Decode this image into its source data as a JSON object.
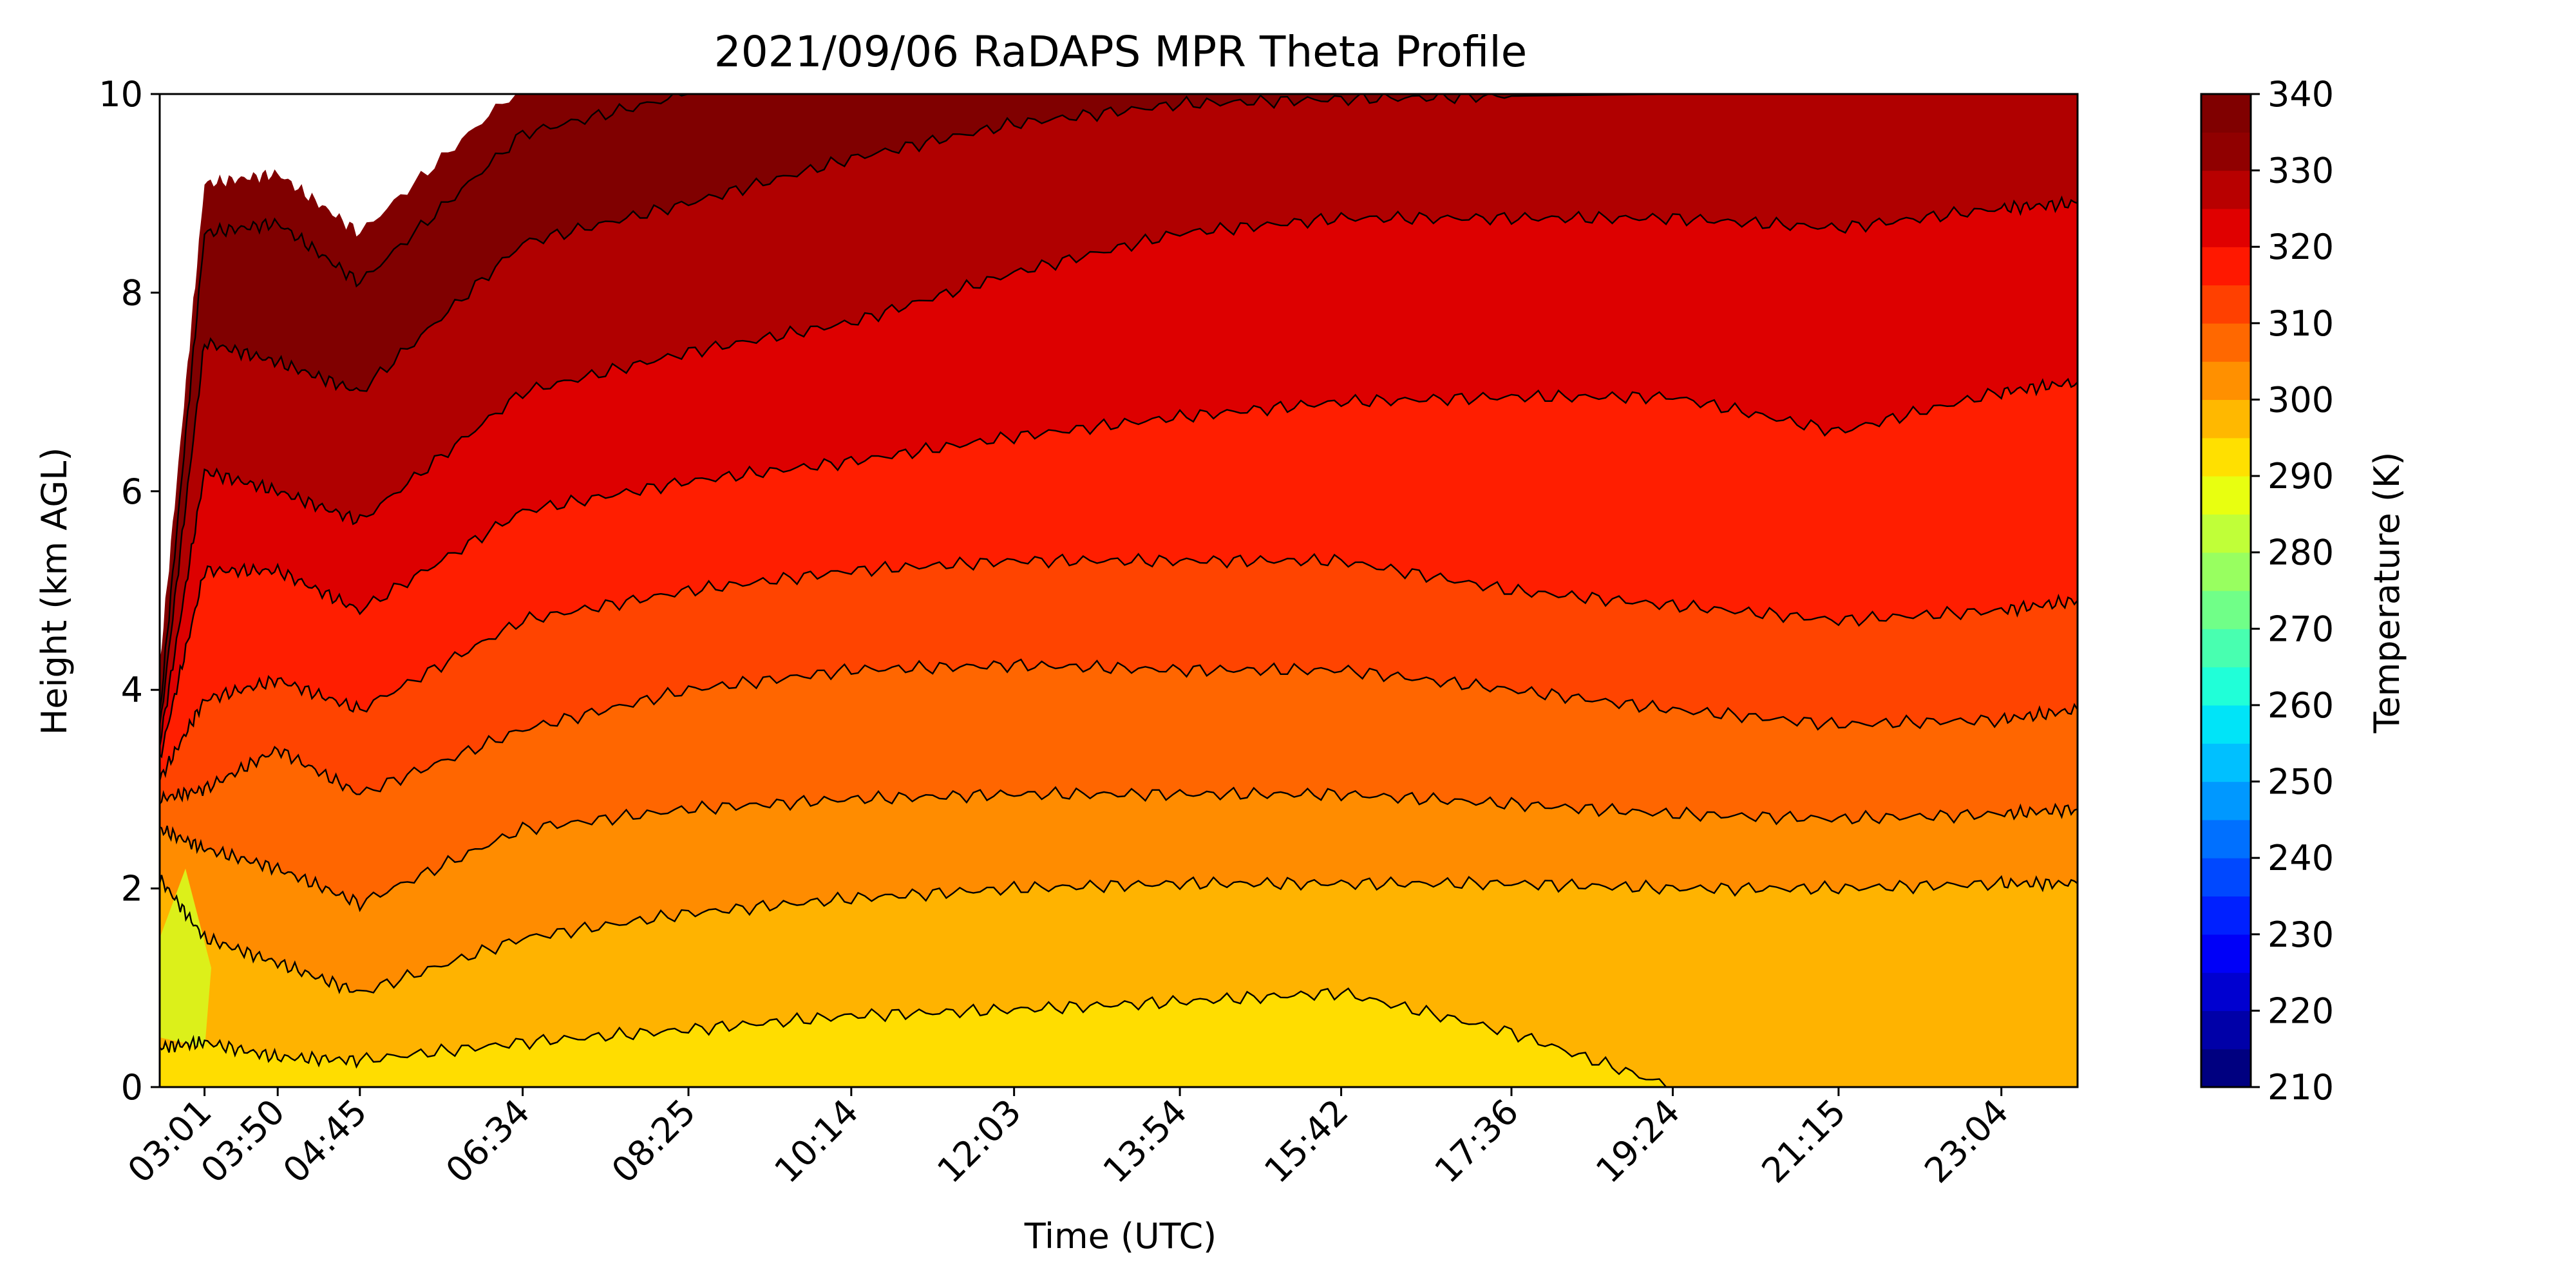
{
  "chart_data": {
    "type": "contour",
    "title": "2021/09/06 RaDAPS MPR Theta Profile",
    "xlabel": "Time (UTC)",
    "ylabel": "Height (km AGL)",
    "x_ticks": [
      "03:01",
      "03:50",
      "04:45",
      "06:34",
      "08:25",
      "10:14",
      "12:03",
      "13:54",
      "15:42",
      "17:36",
      "19:24",
      "21:15",
      "23:04"
    ],
    "y_ticks": [
      0,
      2,
      4,
      6,
      8,
      10
    ],
    "ylim": [
      0,
      10
    ],
    "xlim": [
      "02:31",
      "23:55"
    ],
    "colorbar": {
      "label": "Temperature (K)",
      "range": [
        210,
        340
      ],
      "step": 5,
      "ticks": [
        210,
        220,
        230,
        240,
        250,
        260,
        270,
        280,
        290,
        300,
        310,
        320,
        330,
        340
      ],
      "colormap": "jet"
    },
    "contour_levels": [
      295,
      300,
      305,
      310,
      315,
      320,
      325,
      330,
      335
    ],
    "contour_level_heights_km": {
      "times": [
        "02:31",
        "03:01",
        "03:50",
        "04:45",
        "06:34",
        "08:25",
        "10:14",
        "12:03",
        "13:54",
        "15:42",
        "17:36",
        "19:24",
        "21:15",
        "23:04",
        "23:55"
      ],
      "295": [
        0.4,
        0.45,
        0.3,
        0.27,
        0.45,
        0.58,
        0.72,
        0.78,
        0.86,
        0.95,
        0.55,
        0.0,
        0.0,
        0.0,
        0.0
      ],
      "300": [
        2.1,
        1.5,
        1.25,
        0.95,
        1.5,
        1.75,
        1.9,
        2.0,
        2.05,
        2.05,
        2.05,
        2.0,
        2.0,
        2.05,
        2.05
      ],
      "305": [
        2.6,
        2.4,
        2.2,
        1.85,
        2.6,
        2.8,
        2.9,
        2.95,
        2.95,
        2.95,
        2.85,
        2.75,
        2.7,
        2.75,
        2.8
      ],
      "310": [
        2.9,
        3.0,
        3.4,
        2.95,
        3.6,
        4.0,
        4.2,
        4.25,
        4.2,
        4.2,
        4.0,
        3.8,
        3.65,
        3.7,
        3.8
      ],
      "315": [
        3.1,
        3.9,
        4.1,
        3.8,
        4.7,
        5.0,
        5.2,
        5.3,
        5.3,
        5.3,
        5.0,
        4.85,
        4.7,
        4.8,
        4.9
      ],
      "320": [
        3.3,
        5.2,
        5.2,
        4.8,
        5.8,
        6.1,
        6.3,
        6.55,
        6.75,
        6.9,
        6.95,
        6.95,
        6.6,
        7.0,
        7.1
      ],
      "325": [
        3.45,
        6.2,
        6.0,
        5.7,
        7.0,
        7.4,
        7.7,
        8.2,
        8.6,
        8.75,
        8.75,
        8.75,
        8.65,
        8.85,
        8.9
      ],
      "330": [
        3.6,
        7.5,
        7.3,
        7.0,
        8.5,
        8.9,
        9.35,
        9.7,
        9.9,
        9.95,
        9.98,
        10.0,
        10.0,
        10.0,
        10.0
      ],
      "335": [
        3.75,
        8.6,
        8.7,
        8.1,
        9.6,
        10.0,
        10.0,
        10.0,
        10.0,
        10.0,
        10.0,
        10.0,
        10.0,
        10.0,
        10.0
      ]
    },
    "surface_theta_K": [
      295,
      290,
      295,
      296,
      296,
      296,
      297,
      297,
      297,
      297,
      297,
      299,
      299,
      299,
      299
    ],
    "colors": {
      "290-295": "#dcf01a",
      "295-300": "#ffdd00",
      "300-305": "#ffb300",
      "305-310": "#ff8c00",
      "310-315": "#ff6600",
      "315-320": "#ff4400",
      "320-325": "#ff1e00",
      "325-330": "#dd0000",
      "330-335": "#b00000",
      "335-340": "#800000"
    }
  }
}
